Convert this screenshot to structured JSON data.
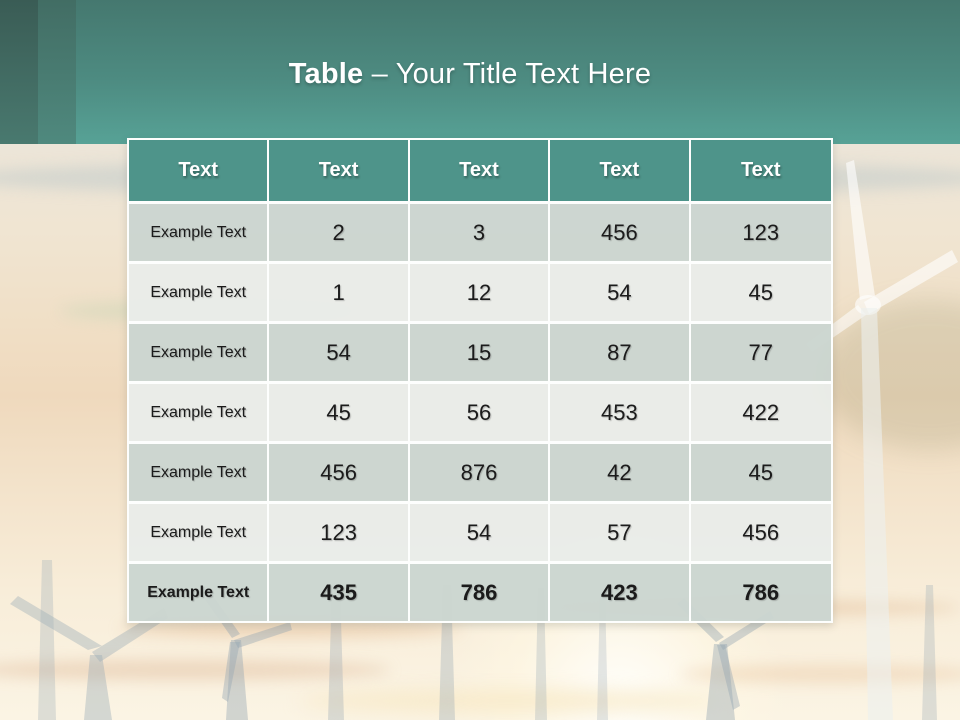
{
  "slide": {
    "title": {
      "keyword": "Table",
      "dash": "–",
      "text": "Your Title Text Here"
    },
    "background_subject": "wind turbines against a washed-out sunset sky",
    "theme": {
      "band_teal_top": "#45786f",
      "band_teal_bottom": "#57a296",
      "header_cell_teal": "#4e948a",
      "odd_row": "#cbd5d0",
      "even_row": "#e9ece9",
      "title_color": "#ffffff"
    }
  },
  "table": {
    "headers": [
      "Text",
      "Text",
      "Text",
      "Text",
      "Text"
    ],
    "rows": [
      {
        "label": "Example Text",
        "values": [
          "2",
          "3",
          "456",
          "123"
        ],
        "bold": false
      },
      {
        "label": "Example Text",
        "values": [
          "1",
          "12",
          "54",
          "45"
        ],
        "bold": false
      },
      {
        "label": "Example Text",
        "values": [
          "54",
          "15",
          "87",
          "77"
        ],
        "bold": false
      },
      {
        "label": "Example Text",
        "values": [
          "45",
          "56",
          "453",
          "422"
        ],
        "bold": false
      },
      {
        "label": "Example Text",
        "values": [
          "456",
          "876",
          "42",
          "45"
        ],
        "bold": false
      },
      {
        "label": "Example Text",
        "values": [
          "123",
          "54",
          "57",
          "456"
        ],
        "bold": false
      },
      {
        "label": "Example Text",
        "values": [
          "435",
          "786",
          "423",
          "786"
        ],
        "bold": true
      }
    ]
  }
}
